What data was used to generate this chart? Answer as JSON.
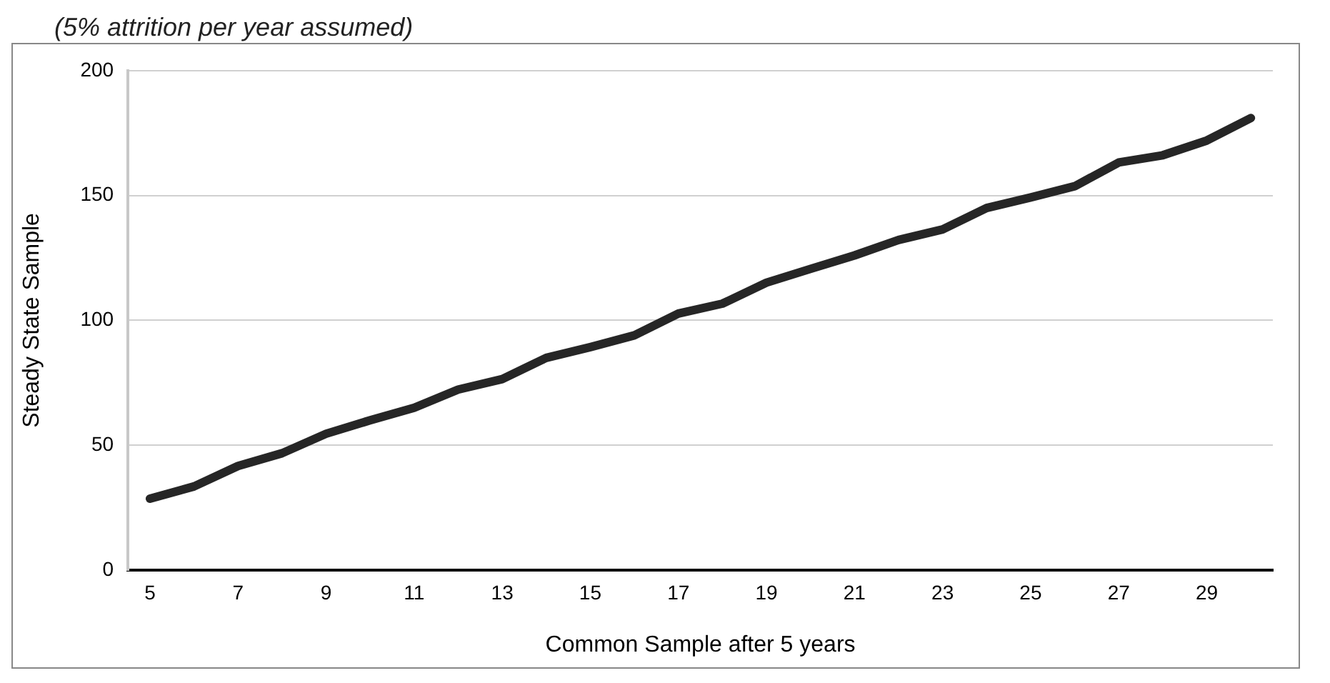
{
  "chart_data": {
    "type": "line",
    "subtitle": "(5% attrition per year assumed)",
    "xlabel": "Common Sample after 5 years",
    "ylabel": "Steady State Sample",
    "x": [
      5,
      6,
      7,
      8,
      9,
      10,
      11,
      12,
      13,
      14,
      15,
      16,
      17,
      18,
      19,
      20,
      21,
      22,
      23,
      24,
      25,
      26,
      27,
      28,
      29,
      30
    ],
    "series": [
      {
        "color": "#262626",
        "values": [
          28.6,
          33.5,
          41.7,
          46.8,
          54.6,
          60,
          65,
          72.3,
          76.5,
          85,
          89.3,
          94,
          102.7,
          106.7,
          115.1,
          120.6,
          126,
          132.2,
          136.4,
          145,
          149.2,
          153.7,
          163.2,
          166.1,
          172,
          181
        ]
      }
    ],
    "xlim": [
      4.5,
      30.5
    ],
    "xticks": [
      5,
      7,
      9,
      11,
      13,
      15,
      17,
      19,
      21,
      23,
      25,
      27,
      29
    ],
    "ylim": [
      0,
      200
    ],
    "yticks": [
      0,
      50,
      100,
      150,
      200
    ],
    "grid": "y",
    "legend": false,
    "marker": "none",
    "line_style": "solid"
  }
}
